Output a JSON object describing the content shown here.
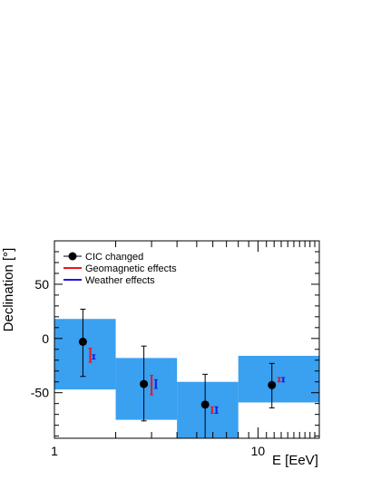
{
  "chart_data": {
    "type": "scatter",
    "xlabel": "E [EeV]",
    "ylabel": "Declination [°]",
    "x_scale": "log",
    "xlim": [
      1,
      20
    ],
    "ylim": [
      -92,
      90
    ],
    "x_ticks": [
      {
        "value": 1,
        "label": "1"
      },
      {
        "value": 10,
        "label": "10"
      }
    ],
    "y_ticks": [
      {
        "value": 50,
        "label": "50"
      },
      {
        "value": 0,
        "label": "0"
      },
      {
        "value": -50,
        "label": "-50"
      }
    ],
    "grid": false,
    "legend_position": "top-left",
    "legend": [
      {
        "label": "CIC changed",
        "marker": "dot",
        "color": "#000000"
      },
      {
        "label": "Geomagnetic effects",
        "marker": "line",
        "color": "#e8161b"
      },
      {
        "label": "Weather effects",
        "marker": "line",
        "color": "#1a1ae0"
      }
    ],
    "bands": [
      {
        "x_from": 1,
        "x_to": 2,
        "y_low": -47,
        "y_high": 18
      },
      {
        "x_from": 2,
        "x_to": 4,
        "y_low": -75,
        "y_high": -18
      },
      {
        "x_from": 4,
        "x_to": 8,
        "y_low": -92,
        "y_high": -40
      },
      {
        "x_from": 8,
        "x_to": 20,
        "y_low": -59,
        "y_high": -16
      }
    ],
    "series": [
      {
        "name": "CIC changed",
        "color": "#000000",
        "points": [
          {
            "x": 1.38,
            "y": -3,
            "err_low": -35,
            "err_high": 27
          },
          {
            "x": 2.75,
            "y": -42,
            "err_low": -76,
            "err_high": -7
          },
          {
            "x": 5.5,
            "y": -61,
            "err_low": -92,
            "err_high": -33
          },
          {
            "x": 11.7,
            "y": -43,
            "err_low": -64,
            "err_high": -23
          }
        ]
      },
      {
        "name": "Geomagnetic effects",
        "color": "#e8161b",
        "points": [
          {
            "x": 1.5,
            "y": -15,
            "err_low": -22,
            "err_high": -9
          },
          {
            "x": 3.0,
            "y": -43,
            "err_low": -52,
            "err_high": -34
          },
          {
            "x": 5.95,
            "y": -66,
            "err_low": -69,
            "err_high": -63
          },
          {
            "x": 12.7,
            "y": -38,
            "err_low": -40,
            "err_high": -36
          }
        ]
      },
      {
        "name": "Weather effects",
        "color": "#1a1ae0",
        "points": [
          {
            "x": 1.56,
            "y": -17,
            "err_low": -19,
            "err_high": -15
          },
          {
            "x": 3.15,
            "y": -42,
            "err_low": -46,
            "err_high": -38
          },
          {
            "x": 6.25,
            "y": -66,
            "err_low": -69,
            "err_high": -63
          },
          {
            "x": 13.3,
            "y": -38,
            "err_low": -40,
            "err_high": -36
          }
        ]
      }
    ],
    "band_color": "#3aa0f0"
  }
}
